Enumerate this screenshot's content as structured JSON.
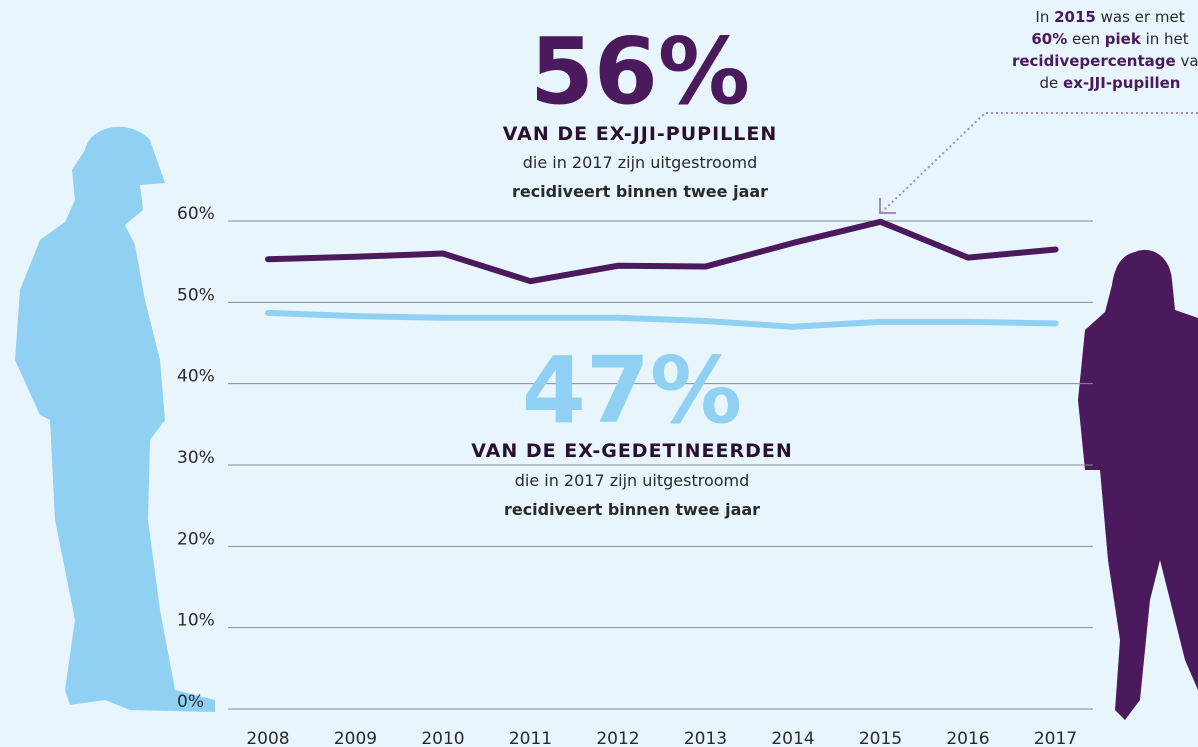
{
  "chart_data": {
    "type": "line",
    "categories": [
      "2008",
      "2009",
      "2010",
      "2011",
      "2012",
      "2013",
      "2014",
      "2015",
      "2016",
      "2017"
    ],
    "series": [
      {
        "color": "#4a1a5c",
        "values": [
          55.3,
          55.6,
          56.0,
          52.6,
          54.5,
          54.4,
          57.3,
          59.9,
          55.5,
          56.5
        ]
      },
      {
        "color": "#8fd0f3",
        "values": [
          48.7,
          48.3,
          48.1,
          48.1,
          48.1,
          47.7,
          47.0,
          47.6,
          47.6,
          47.4
        ]
      }
    ],
    "ylim": [
      0,
      60
    ],
    "yticks": [
      {
        "value": 0,
        "label": "0%"
      },
      {
        "value": 10,
        "label": "10%"
      },
      {
        "value": 20,
        "label": "20%"
      },
      {
        "value": 30,
        "label": "30%"
      },
      {
        "value": 40,
        "label": "40%"
      },
      {
        "value": 50,
        "label": "50%"
      },
      {
        "value": 60,
        "label": "60%"
      }
    ],
    "grid": true,
    "callouts": [
      {
        "big": "56%",
        "heading": "VAN DE EX-JJI-PUPILLEN",
        "line1": "die in 2017 zijn uitgestroomd",
        "line2": "recidiveert binnen twee jaar",
        "color": "#4a1a5c"
      },
      {
        "big": "47%",
        "heading": "VAN DE EX-GEDETINEERDEN",
        "line1": "die in 2017 zijn uitgestroomd",
        "line2": "recidiveert binnen twee jaar",
        "color": "#8fd0f3"
      }
    ],
    "annotation": [
      [
        {
          "text": "In ",
          "bold": false
        },
        {
          "text": "2015",
          "bold": true
        },
        {
          "text": " was er met",
          "bold": false
        }
      ],
      [
        {
          "text": "60%",
          "bold": true
        },
        {
          "text": " een ",
          "bold": false
        },
        {
          "text": "piek",
          "bold": true
        },
        {
          "text": " in het",
          "bold": false
        }
      ],
      [
        {
          "text": "recidivepercentage",
          "bold": true
        },
        {
          "text": " van",
          "bold": false
        }
      ],
      [
        {
          "text": "de ",
          "bold": false
        },
        {
          "text": "ex-JJI-pupillen",
          "bold": true
        }
      ]
    ]
  }
}
